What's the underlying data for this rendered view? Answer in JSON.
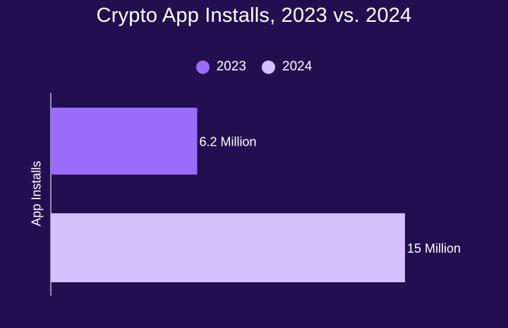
{
  "chart_data": {
    "type": "bar",
    "orientation": "horizontal",
    "title": "Crypto App Installs, 2023 vs. 2024",
    "ylabel": "App Installs",
    "xlabel": "",
    "unit": "Million",
    "series": [
      {
        "name": "2023",
        "value": 6.2,
        "label": "6.2 Million",
        "color": "#9b6bfb"
      },
      {
        "name": "2024",
        "value": 15,
        "label": "15 Million",
        "color": "#d4c0fd"
      }
    ],
    "legend_position": "top-center",
    "grid": false
  },
  "colors": {
    "background": "#220f4f",
    "text": "#ffffff",
    "axis": "#e6dcff"
  }
}
